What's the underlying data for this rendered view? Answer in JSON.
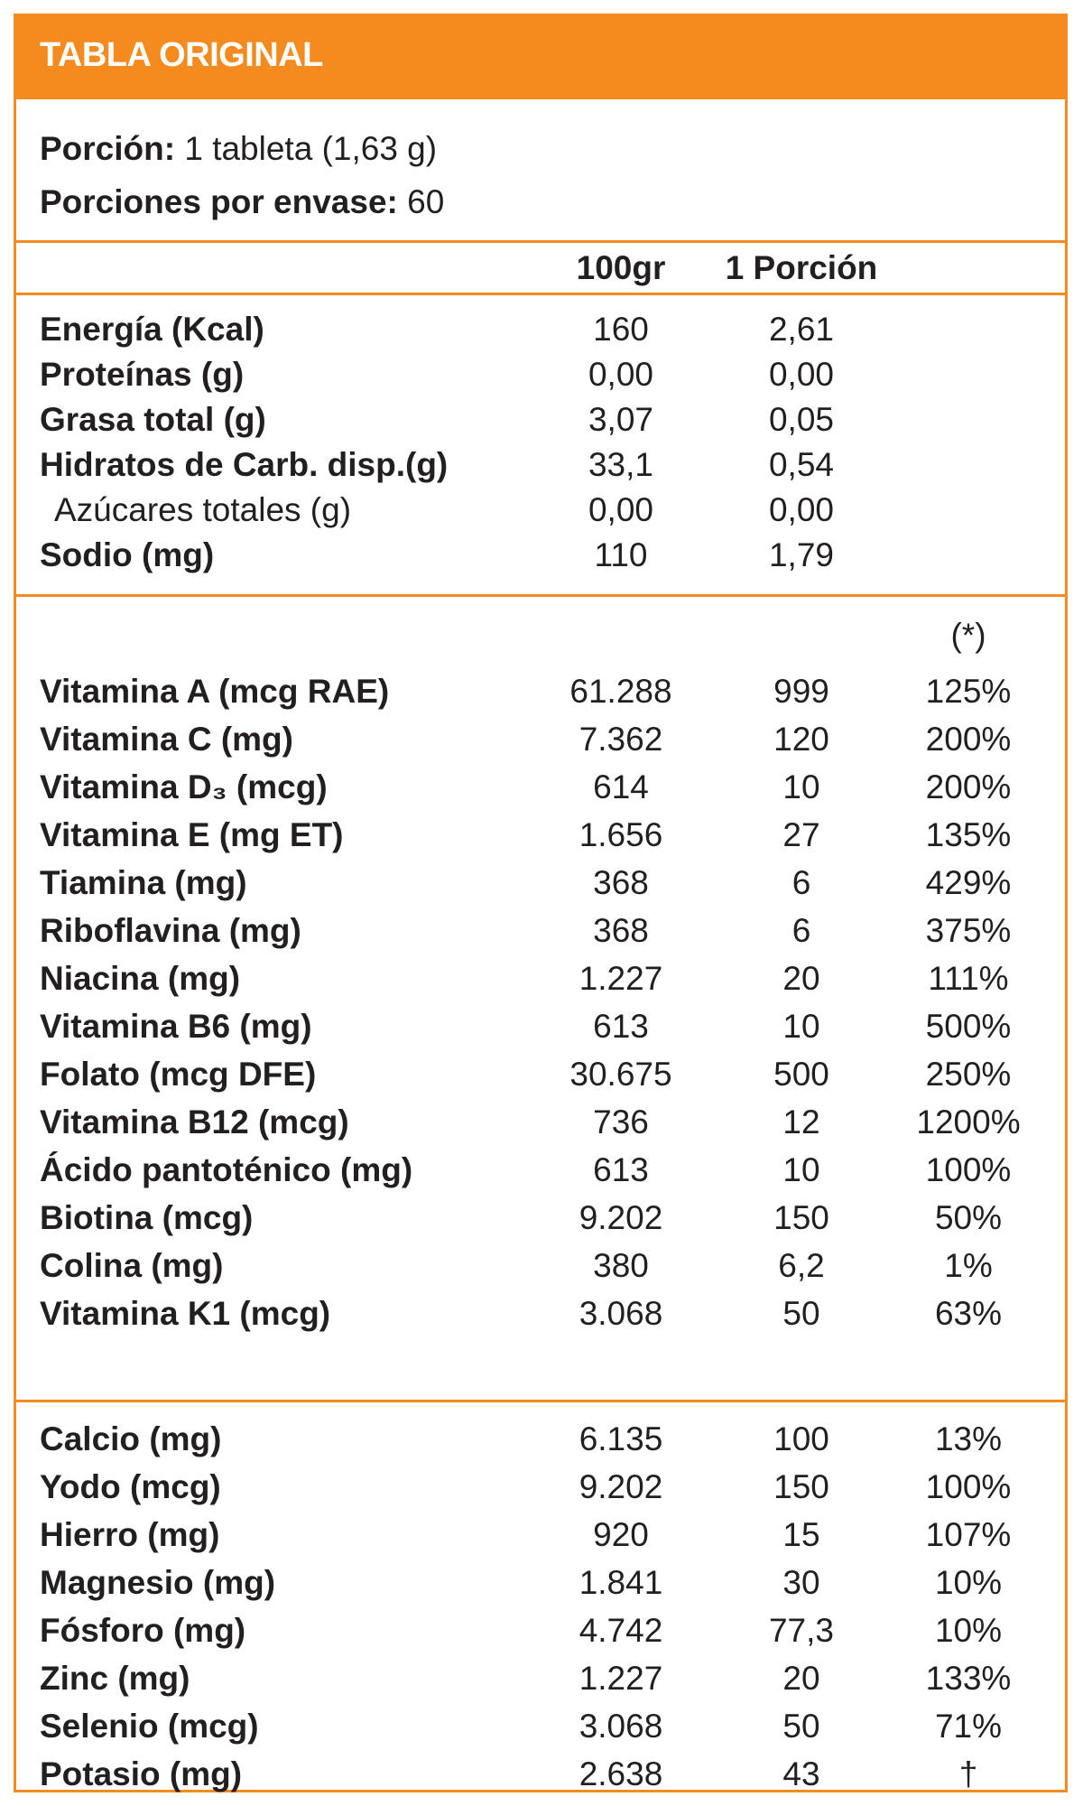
{
  "header": {
    "title": "TABLA ORIGINAL",
    "color": "#f58a1f"
  },
  "serving": {
    "portion_label": "Porción:",
    "portion_value": "1 tableta (1,63 g)",
    "servings_label": "Porciones por envase:",
    "servings_value": "60"
  },
  "columns": {
    "per100": "100gr",
    "perPortion": "1 Porción",
    "idr": "(*)"
  },
  "macros": [
    {
      "label": "Energía (Kcal)",
      "per100": "160",
      "portion": "2,61",
      "sub": false
    },
    {
      "label": "Proteínas (g)",
      "per100": "0,00",
      "portion": "0,00",
      "sub": false
    },
    {
      "label": "Grasa total (g)",
      "per100": "3,07",
      "portion": "0,05",
      "sub": false
    },
    {
      "label": "Hidratos de Carb. disp.(g)",
      "per100": "33,1",
      "portion": "0,54",
      "sub": false
    },
    {
      "label": "Azúcares totales (g)",
      "per100": "0,00",
      "portion": "0,00",
      "sub": true
    },
    {
      "label": "Sodio (mg)",
      "per100": "110",
      "portion": "1,79",
      "sub": false
    }
  ],
  "vitamins": [
    {
      "label": "Vitamina A (mcg RAE)",
      "per100": "61.288",
      "portion": "999",
      "pct": "125%"
    },
    {
      "label": "Vitamina C (mg)",
      "per100": "7.362",
      "portion": "120",
      "pct": "200%"
    },
    {
      "label": "Vitamina D₃ (mcg)",
      "per100": "614",
      "portion": "10",
      "pct": "200%"
    },
    {
      "label": "Vitamina E (mg ET)",
      "per100": "1.656",
      "portion": "27",
      "pct": "135%"
    },
    {
      "label": "Tiamina (mg)",
      "per100": "368",
      "portion": "6",
      "pct": "429%"
    },
    {
      "label": "Riboflavina (mg)",
      "per100": "368",
      "portion": "6",
      "pct": "375%"
    },
    {
      "label": "Niacina (mg)",
      "per100": "1.227",
      "portion": "20",
      "pct": "111%"
    },
    {
      "label": "Vitamina B6 (mg)",
      "per100": "613",
      "portion": "10",
      "pct": "500%"
    },
    {
      "label": "Folato (mcg DFE)",
      "per100": "30.675",
      "portion": "500",
      "pct": "250%"
    },
    {
      "label": "Vitamina B12 (mcg)",
      "per100": "736",
      "portion": "12",
      "pct": "1200%"
    },
    {
      "label": "Ácido pantoténico (mg)",
      "per100": "613",
      "portion": "10",
      "pct": "100%"
    },
    {
      "label": "Biotina (mcg)",
      "per100": "9.202",
      "portion": "150",
      "pct": "50%"
    },
    {
      "label": "Colina (mg)",
      "per100": "380",
      "portion": "6,2",
      "pct": "1%"
    },
    {
      "label": "Vitamina K1 (mcg)",
      "per100": "3.068",
      "portion": "50",
      "pct": "63%"
    }
  ],
  "minerals": [
    {
      "label": "Calcio (mg)",
      "per100": "6.135",
      "portion": "100",
      "pct": "13%"
    },
    {
      "label": "Yodo (mcg)",
      "per100": "9.202",
      "portion": "150",
      "pct": "100%"
    },
    {
      "label": "Hierro (mg)",
      "per100": "920",
      "portion": "15",
      "pct": "107%"
    },
    {
      "label": "Magnesio (mg)",
      "per100": "1.841",
      "portion": "30",
      "pct": "10%"
    },
    {
      "label": "Fósforo (mg)",
      "per100": "4.742",
      "portion": "77,3",
      "pct": "10%"
    },
    {
      "label": "Zinc (mg)",
      "per100": "1.227",
      "portion": "20",
      "pct": "133%"
    },
    {
      "label": "Selenio (mcg)",
      "per100": "3.068",
      "portion": "50",
      "pct": "71%"
    },
    {
      "label": "Potasio (mg)",
      "per100": "2.638",
      "portion": "43",
      "pct": "†"
    }
  ]
}
